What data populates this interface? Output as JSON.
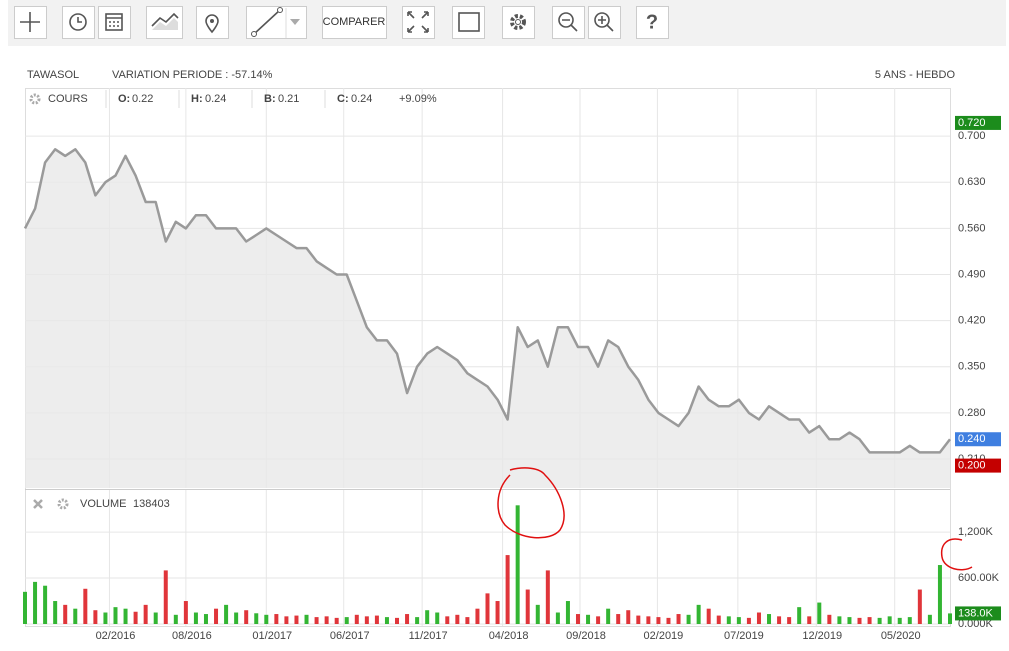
{
  "toolbar": {
    "compare": "COMPARER"
  },
  "chart_data": [
    {
      "type": "line",
      "title": "TAWASOL",
      "subtitle": "VARIATION PERIODE : -57.14%",
      "period": "5 ANS - HEBDO",
      "legend": {
        "name": "COURS",
        "items": [
          {
            "label": "O:",
            "value": 0.22
          },
          {
            "label": "H:",
            "value": 0.24
          },
          {
            "label": "B:",
            "value": 0.21
          },
          {
            "label": "C:",
            "value": 0.24
          }
        ],
        "change": "+9.09%"
      },
      "color": "#9a9a9a",
      "area_color": "#e8e8e8",
      "grid": true,
      "xlim": [
        0,
        92
      ],
      "values": [
        0.56,
        0.59,
        0.66,
        0.68,
        0.67,
        0.68,
        0.66,
        0.61,
        0.63,
        0.64,
        0.67,
        0.64,
        0.6,
        0.6,
        0.54,
        0.57,
        0.56,
        0.58,
        0.58,
        0.56,
        0.56,
        0.56,
        0.54,
        0.55,
        0.56,
        0.55,
        0.54,
        0.53,
        0.53,
        0.51,
        0.5,
        0.49,
        0.49,
        0.45,
        0.41,
        0.39,
        0.39,
        0.37,
        0.31,
        0.35,
        0.37,
        0.38,
        0.37,
        0.36,
        0.34,
        0.33,
        0.32,
        0.3,
        0.27,
        0.41,
        0.38,
        0.39,
        0.35,
        0.41,
        0.41,
        0.38,
        0.38,
        0.35,
        0.39,
        0.38,
        0.35,
        0.33,
        0.3,
        0.28,
        0.27,
        0.26,
        0.28,
        0.32,
        0.3,
        0.29,
        0.29,
        0.3,
        0.28,
        0.27,
        0.29,
        0.28,
        0.27,
        0.27,
        0.25,
        0.26,
        0.24,
        0.24,
        0.25,
        0.24,
        0.22,
        0.22,
        0.22,
        0.22,
        0.23,
        0.22,
        0.22,
        0.22,
        0.24
      ],
      "ylim": [
        0.166,
        0.773
      ],
      "yticks": [
        {
          "value": 0.21,
          "label": "0.210"
        },
        {
          "value": 0.28,
          "label": "0.280"
        },
        {
          "value": 0.35,
          "label": "0.350"
        },
        {
          "value": 0.42,
          "label": "0.420"
        },
        {
          "value": 0.49,
          "label": "0.490"
        },
        {
          "value": 0.56,
          "label": "0.560"
        },
        {
          "value": 0.63,
          "label": "0.630"
        },
        {
          "value": 0.7,
          "label": "0.700"
        }
      ],
      "price_markers": [
        {
          "value": 0.72,
          "label": "0.720",
          "color": "#1c8c1c"
        },
        {
          "value": 0.24,
          "label": "0.240",
          "color": "#3f7fe0"
        },
        {
          "value": 0.2,
          "label": "0.200",
          "color": "#c40000"
        }
      ]
    },
    {
      "type": "bar",
      "legend_name": "VOLUME",
      "legend_value": 138403,
      "up_color": "#33b533",
      "down_color": "#e0353a",
      "grid": true,
      "xlim": [
        0,
        92
      ],
      "xticks": [
        {
          "value": 8.4,
          "label": "02/2016"
        },
        {
          "value": 16.0,
          "label": "08/2016"
        },
        {
          "value": 24.0,
          "label": "01/2017"
        },
        {
          "value": 31.7,
          "label": "06/2017"
        },
        {
          "value": 39.5,
          "label": "11/2017"
        },
        {
          "value": 47.5,
          "label": "04/2018"
        },
        {
          "value": 55.2,
          "label": "09/2018"
        },
        {
          "value": 62.9,
          "label": "02/2019"
        },
        {
          "value": 70.9,
          "label": "07/2019"
        },
        {
          "value": 78.7,
          "label": "12/2019"
        },
        {
          "value": 86.5,
          "label": "05/2020"
        }
      ],
      "values": [
        420000,
        550000,
        500000,
        300000,
        250000,
        200000,
        460000,
        180000,
        150000,
        220000,
        200000,
        160000,
        250000,
        150000,
        700000,
        120000,
        300000,
        150000,
        130000,
        200000,
        250000,
        150000,
        180000,
        140000,
        120000,
        130000,
        100000,
        110000,
        120000,
        90000,
        100000,
        80000,
        90000,
        120000,
        100000,
        110000,
        90000,
        80000,
        130000,
        90000,
        180000,
        150000,
        100000,
        120000,
        90000,
        200000,
        400000,
        300000,
        900000,
        1550000,
        450000,
        250000,
        700000,
        150000,
        300000,
        130000,
        120000,
        100000,
        200000,
        130000,
        180000,
        110000,
        100000,
        90000,
        80000,
        130000,
        120000,
        250000,
        200000,
        110000,
        100000,
        90000,
        80000,
        150000,
        130000,
        100000,
        90000,
        220000,
        100000,
        280000,
        120000,
        100000,
        90000,
        80000,
        90000,
        80000,
        100000,
        80000,
        90000,
        450000,
        120000,
        770000,
        138403
      ],
      "ylim": [
        0,
        1750000
      ],
      "yticks": [
        {
          "value": 0,
          "label": "0.000K"
        },
        {
          "value": 600000,
          "label": "600.00K"
        },
        {
          "value": 1200000,
          "label": "1,200K"
        }
      ],
      "volume_marker": {
        "value": 138000,
        "label": "138.0K",
        "color": "#1c8c1c"
      }
    }
  ]
}
